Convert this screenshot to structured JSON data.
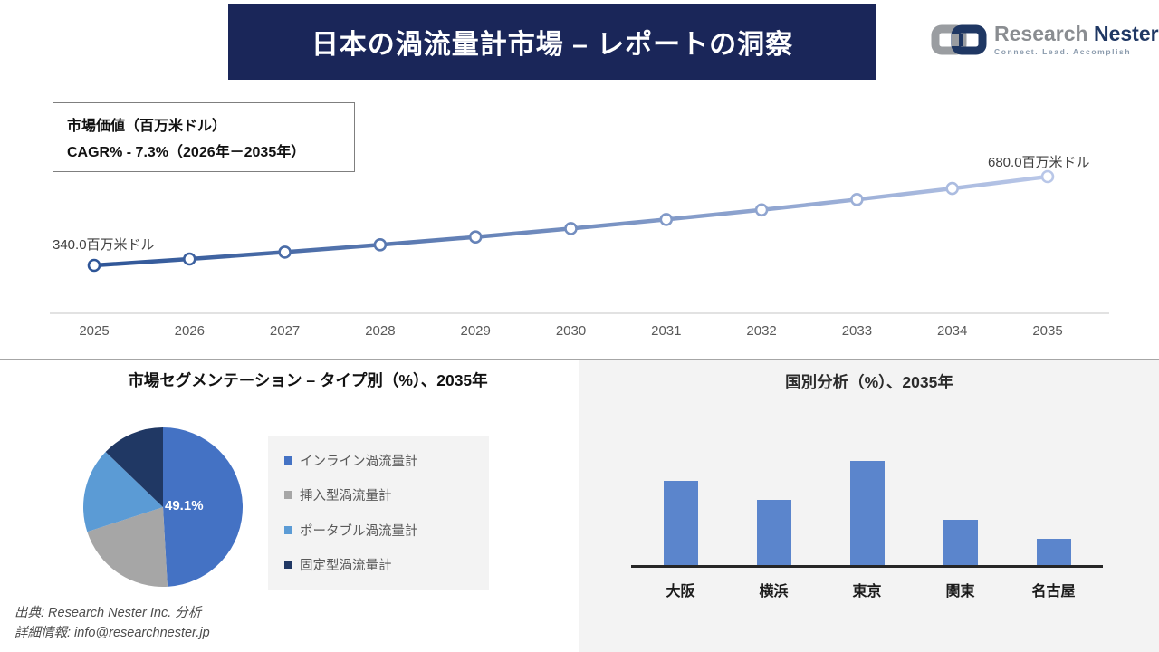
{
  "header": {
    "title": "日本の渦流量計市場 – レポートの洞察",
    "logo": {
      "name_primary": "Research",
      "name_secondary": "Nester",
      "tagline": "Connect. Lead. Accomplish"
    }
  },
  "info_box": {
    "line1": "市場価値（百万米ドル）",
    "line2": "CAGR% - 7.3%（2026年－2035年）"
  },
  "footer": {
    "line1": "出典: Research Nester Inc. 分析",
    "line2": "詳細情報: info@researchnester.jp"
  },
  "colors": {
    "header_bg": "#1a2659",
    "line_gradient_start": "#2e5597",
    "line_gradient_end": "#b9c7e8",
    "grid_line": "#d9d9d9",
    "bar_fill": "#5b85cc",
    "panel_bg": "#f3f3f3"
  },
  "chart_data": [
    {
      "type": "line",
      "title": "市場価値（百万米ドル）",
      "x": [
        2025,
        2026,
        2027,
        2028,
        2029,
        2030,
        2031,
        2032,
        2033,
        2034,
        2035
      ],
      "values": [
        340.0,
        364.4,
        390.6,
        418.6,
        448.7,
        480.9,
        515.4,
        552.4,
        592.1,
        634.6,
        680.0
      ],
      "start_label": "340.0百万米ドル",
      "end_label": "680.0百万米ドル",
      "unit": "百万米ドル",
      "cagr": "7.3%",
      "cagr_period": "2026年－2035年",
      "grid": "single-baseline",
      "legend": "none"
    },
    {
      "type": "pie",
      "title": "市場セグメンテーション – タイプ別（%）、2035年",
      "labels": [
        "インライン渦流量計",
        "挿入型渦流量計",
        "ポータブル渦流量計",
        "固定型渦流量計"
      ],
      "values": [
        49.1,
        20.9,
        17.2,
        12.8
      ],
      "colors": [
        "#4472c4",
        "#a6a6a6",
        "#5b9bd5",
        "#203864"
      ],
      "center_label": "49.1%",
      "labeled_slice": "インライン渦流量計",
      "legend_position": "right"
    },
    {
      "type": "bar",
      "title": "国別分析（%）、2035年",
      "categories": [
        "大阪",
        "横浜",
        "東京",
        "関東",
        "名古屋"
      ],
      "values": [
        26,
        20,
        32,
        14,
        8
      ],
      "ylabel": "",
      "grid": false,
      "value_labels_shown": false
    }
  ]
}
